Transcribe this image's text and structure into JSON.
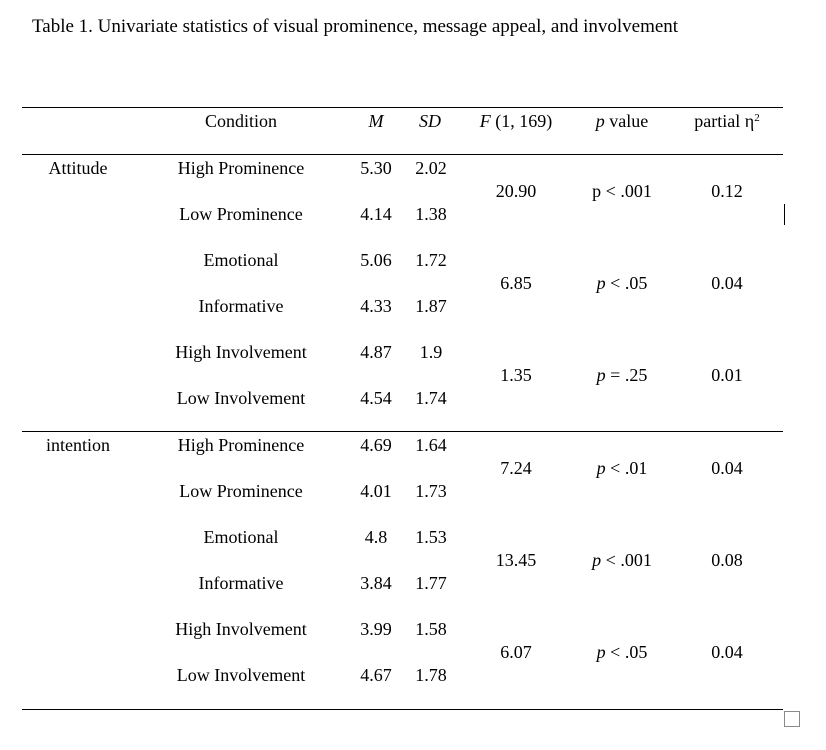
{
  "caption": "Table 1. Univariate statistics of visual prominence, message appeal, and involvement",
  "headers": {
    "condition": "Condition",
    "m": "M",
    "sd": "SD",
    "f_italic": "F",
    "f_rest": " (1, 169)",
    "p_italic": "p",
    "p_rest": " value",
    "eta": "partial η",
    "eta_sup": "2"
  },
  "groups": [
    {
      "label": "Attitude",
      "rows": [
        {
          "condition": "High Prominence",
          "m": "5.30",
          "sd": "2.02"
        },
        {
          "condition": "Low Prominence",
          "m": "4.14",
          "sd": "1.38"
        },
        {
          "condition": "Emotional",
          "m": "5.06",
          "sd": "1.72"
        },
        {
          "condition": "Informative",
          "m": "4.33",
          "sd": "1.87"
        },
        {
          "condition": "High Involvement",
          "m": "4.87",
          "sd": "1.9"
        },
        {
          "condition": "Low Involvement",
          "m": "4.54",
          "sd": "1.74"
        }
      ],
      "tests": [
        {
          "f": "20.90",
          "p_sym": "p",
          "p_rest": " < .001",
          "p_italic": false,
          "eta": "0.12"
        },
        {
          "f": "6.85",
          "p_sym": "p",
          "p_rest": " < .05",
          "p_italic": true,
          "eta": "0.04"
        },
        {
          "f": "1.35",
          "p_sym": "p",
          "p_rest": " = .25",
          "p_italic": true,
          "eta": "0.01"
        }
      ]
    },
    {
      "label": "intention",
      "rows": [
        {
          "condition": "High Prominence",
          "m": "4.69",
          "sd": "1.64"
        },
        {
          "condition": "Low Prominence",
          "m": "4.01",
          "sd": "1.73"
        },
        {
          "condition": "Emotional",
          "m": "4.8",
          "sd": "1.53"
        },
        {
          "condition": "Informative",
          "m": "3.84",
          "sd": "1.77"
        },
        {
          "condition": "High Involvement",
          "m": "3.99",
          "sd": "1.58"
        },
        {
          "condition": "Low Involvement",
          "m": "4.67",
          "sd": "1.78"
        }
      ],
      "tests": [
        {
          "f": "7.24",
          "p_sym": "p",
          "p_rest": " < .01",
          "p_italic": true,
          "eta": "0.04"
        },
        {
          "f": "13.45",
          "p_sym": "p",
          "p_rest": " < .001",
          "p_italic": true,
          "eta": "0.08"
        },
        {
          "f": "6.07",
          "p_sym": "p",
          "p_rest": " < .05",
          "p_italic": true,
          "eta": "0.04"
        }
      ]
    }
  ]
}
